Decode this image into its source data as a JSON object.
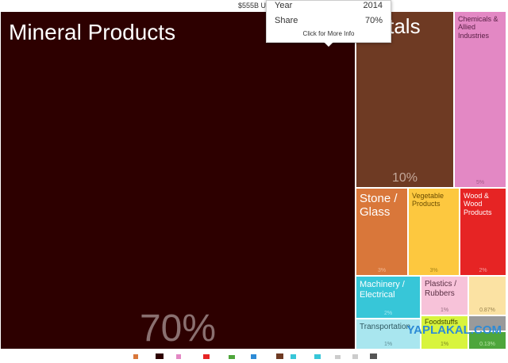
{
  "header": {
    "total_value": "$555B US"
  },
  "tooltip": {
    "year_label": "Year",
    "year_value": "2014",
    "share_label": "Share",
    "share_value": "70%",
    "more_info": "Click for More Info"
  },
  "tiles": {
    "mineral": {
      "label": "Mineral Products",
      "pct": "70%",
      "color": "#2d0000"
    },
    "metals": {
      "label": "Metals",
      "pct": "10%",
      "color": "#6e3a23"
    },
    "chemicals": {
      "label": "Chemicals & Allied Industries",
      "pct": "5%",
      "color": "#e388c4"
    },
    "stone": {
      "label": "Stone / Glass",
      "pct": "3%",
      "color": "#d9773a"
    },
    "vegetable": {
      "label": "Vegetable Products",
      "pct": "3%",
      "color": "#fdc83f"
    },
    "wood": {
      "label": "Wood & Wood Products",
      "pct": "2%",
      "color": "#e62424"
    },
    "machinery": {
      "label": "Machinery / Electrical",
      "pct": "2%",
      "color": "#37c6d8"
    },
    "plastics": {
      "label": "Plastics / Rubbers",
      "pct": "1%",
      "color": "#f7c2d9"
    },
    "misc": {
      "label": "",
      "pct": "0.87%",
      "color": "#fbe2a3"
    },
    "foodstuffs": {
      "label": "Foodstuffs",
      "pct": "1%",
      "color": "#d8f43d"
    },
    "transportation": {
      "label": "Transportation",
      "pct": "1%",
      "color": "#a9e6ef"
    },
    "small": {
      "label": "",
      "pct": "0.13%",
      "color": "#4ea63c"
    }
  },
  "watermark": "YAPLAKAL.COM"
}
